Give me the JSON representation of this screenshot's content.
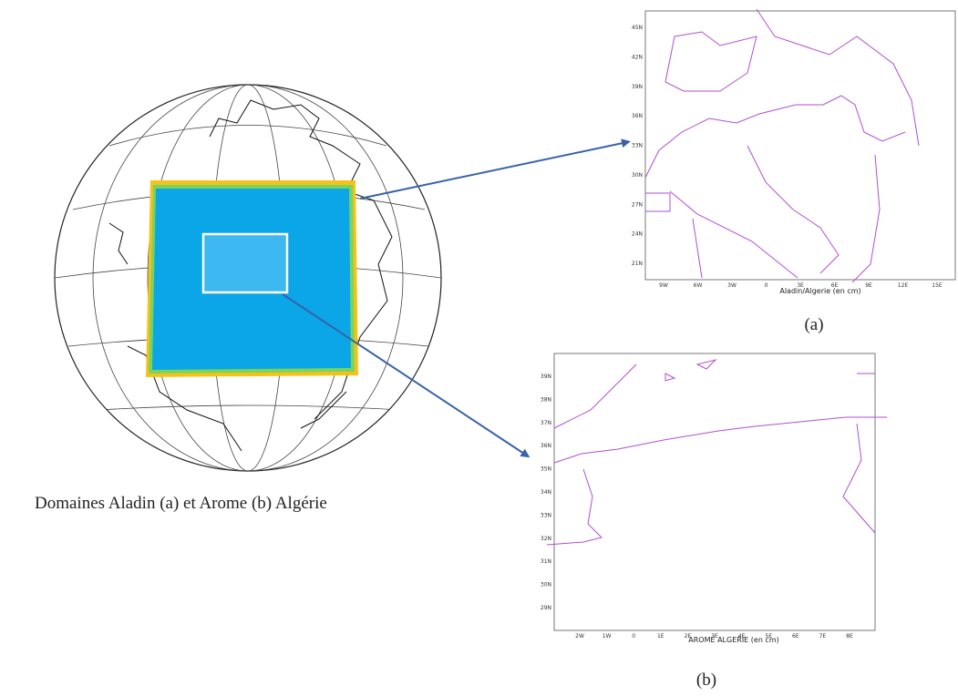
{
  "caption": "Domaines Aladin (a) et Arome (b) Algérie",
  "map_a": {
    "label": "(a)",
    "title": "Aladin/Algerie (en cm)",
    "yticks": [
      "45N",
      "42N",
      "39N",
      "36N",
      "33N",
      "30N",
      "27N",
      "24N",
      "21N"
    ],
    "xticks": [
      "9W",
      "6W",
      "3W",
      "0",
      "3E",
      "6E",
      "9E",
      "12E",
      "15E"
    ]
  },
  "map_b": {
    "label": "(b)",
    "title": "AROME ALGERIE (en cm)",
    "yticks": [
      "39N",
      "38N",
      "37N",
      "36N",
      "35N",
      "34N",
      "33N",
      "32N",
      "31N",
      "30N",
      "29N"
    ],
    "xticks": [
      "2W",
      "1W",
      "0",
      "1E",
      "2E",
      "3E",
      "4E",
      "5E",
      "6E",
      "7E",
      "8E"
    ]
  }
}
